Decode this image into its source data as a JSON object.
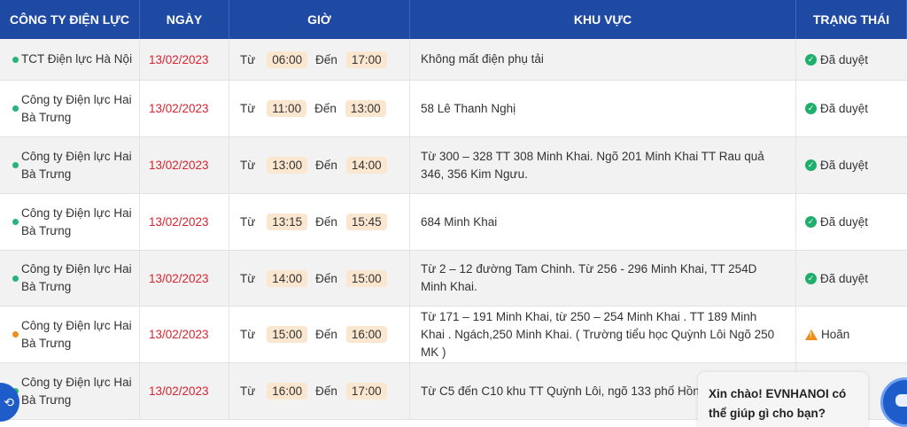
{
  "headers": {
    "company": "CÔNG TY ĐIỆN LỰC",
    "date": "NGÀY",
    "time": "GIỜ",
    "area": "KHU VỰC",
    "status": "TRẠNG THÁI"
  },
  "labels": {
    "from": "Từ",
    "to": "Đến"
  },
  "rows": [
    {
      "company": "TCT Điện lực Hà Nội",
      "date": "13/02/2023",
      "start": "06:00",
      "end": "17:00",
      "area": "Không mất điện phụ tải",
      "status": "Đã duyệt"
    },
    {
      "company": "Công ty Điện lực Hai Bà Trưng",
      "date": "13/02/2023",
      "start": "11:00",
      "end": "13:00",
      "area": "58 Lê Thanh Nghị",
      "status": "Đã duyệt"
    },
    {
      "company": "Công ty Điện lực Hai Bà Trưng",
      "date": "13/02/2023",
      "start": "13:00",
      "end": "14:00",
      "area": "Từ 300 – 328 TT 308 Minh Khai. Ngõ 201 Minh Khai TT Rau quả 346, 356 Kim Ngưu.",
      "status": "Đã duyệt"
    },
    {
      "company": "Công ty Điện lực Hai Bà Trưng",
      "date": "13/02/2023",
      "start": "13:15",
      "end": "15:45",
      "area": "684 Minh Khai",
      "status": "Đã duyệt"
    },
    {
      "company": "Công ty Điện lực Hai Bà Trưng",
      "date": "13/02/2023",
      "start": "14:00",
      "end": "15:00",
      "area": "Từ 2 – 12 đường Tam Chinh. Từ 256 - 296 Minh Khai, TT 254D Minh Khai.",
      "status": "Đã duyệt"
    },
    {
      "company": "Công ty Điện lực Hai Bà Trưng",
      "date": "13/02/2023",
      "start": "15:00",
      "end": "16:00",
      "area": "Từ 171 – 191 Minh Khai, từ 250 – 254 Minh Khai . TT 189 Minh Khai . Ngách,250 Minh Khai. ( Trường tiểu học Quỳnh Lôi Ngõ 250 MK )",
      "status": "Hoãn"
    },
    {
      "company": "Công ty Điện lực Hai Bà Trưng",
      "date": "13/02/2023",
      "start": "16:00",
      "end": "17:00",
      "area": "Từ C5 đến C10 khu TT Quỳnh Lôi, ngõ 133 phố Hồng M",
      "status": ""
    }
  ],
  "chat": {
    "greeting": "Xin chào! EVNHANOI có thể giúp gì cho bạn?"
  },
  "colors": {
    "header_bg": "#1f4aa3",
    "date": "#d9232e",
    "chip": "#fbe6cf",
    "approved": "#1fae6b",
    "postponed": "#f08c1a"
  }
}
